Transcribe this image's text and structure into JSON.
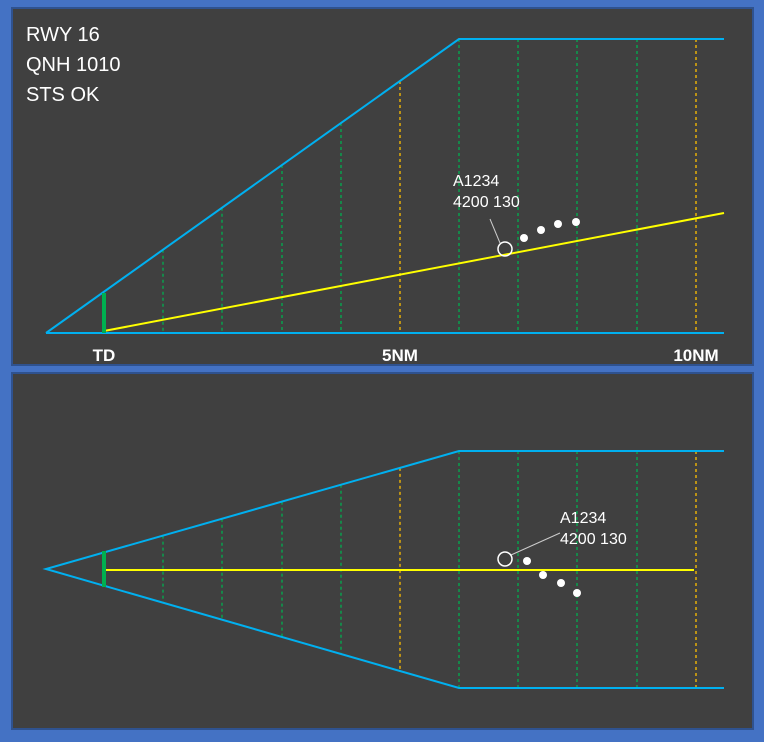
{
  "status": {
    "runway": "RWY 16",
    "qnh": "QNH 1010",
    "system_status": "STS OK"
  },
  "axis_labels": {
    "touchdown": "TD",
    "mid": "5NM",
    "far": "10NM"
  },
  "target": {
    "callsign": "A1234",
    "altitude_speed": "4200  130"
  },
  "colors": {
    "frame": "#4472c4",
    "panel": "#404040",
    "wedge": "#00b0f0",
    "glidepath": "#ffff00",
    "range_mark": "#00b050",
    "range_mark_major": "#ffc000",
    "touchdown_bar": "#00b050",
    "target": "#ffffff"
  }
}
